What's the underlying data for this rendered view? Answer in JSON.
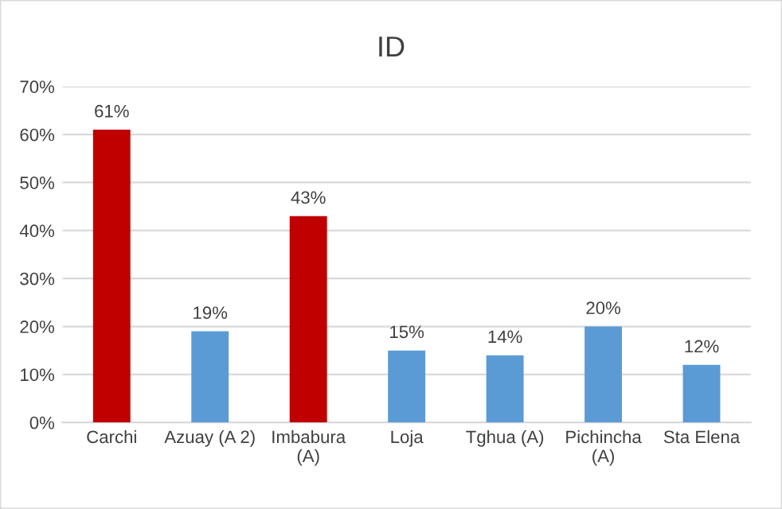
{
  "chart_data": {
    "type": "bar",
    "title": "ID",
    "categories": [
      "Carchi",
      "Azuay (A 2)",
      "Imbabura\n(A)",
      "Loja",
      "Tghua (A)",
      "Pichincha\n(A)",
      "Sta Elena"
    ],
    "values": [
      61,
      19,
      43,
      15,
      14,
      20,
      12
    ],
    "colors": [
      "#c00000",
      "#5b9bd5",
      "#c00000",
      "#5b9bd5",
      "#5b9bd5",
      "#5b9bd5",
      "#5b9bd5"
    ],
    "value_labels": [
      "61%",
      "19%",
      "43%",
      "15%",
      "14%",
      "20%",
      "12%"
    ],
    "ylim": [
      0,
      70
    ],
    "yticks": [
      {
        "value": 0,
        "label": "0%"
      },
      {
        "value": 10,
        "label": "10%"
      },
      {
        "value": 20,
        "label": "20%"
      },
      {
        "value": 30,
        "label": "30%"
      },
      {
        "value": 40,
        "label": "40%"
      },
      {
        "value": 50,
        "label": "50%"
      },
      {
        "value": 60,
        "label": "60%"
      },
      {
        "value": 70,
        "label": "70%"
      }
    ],
    "grid": "y",
    "legend": false
  }
}
